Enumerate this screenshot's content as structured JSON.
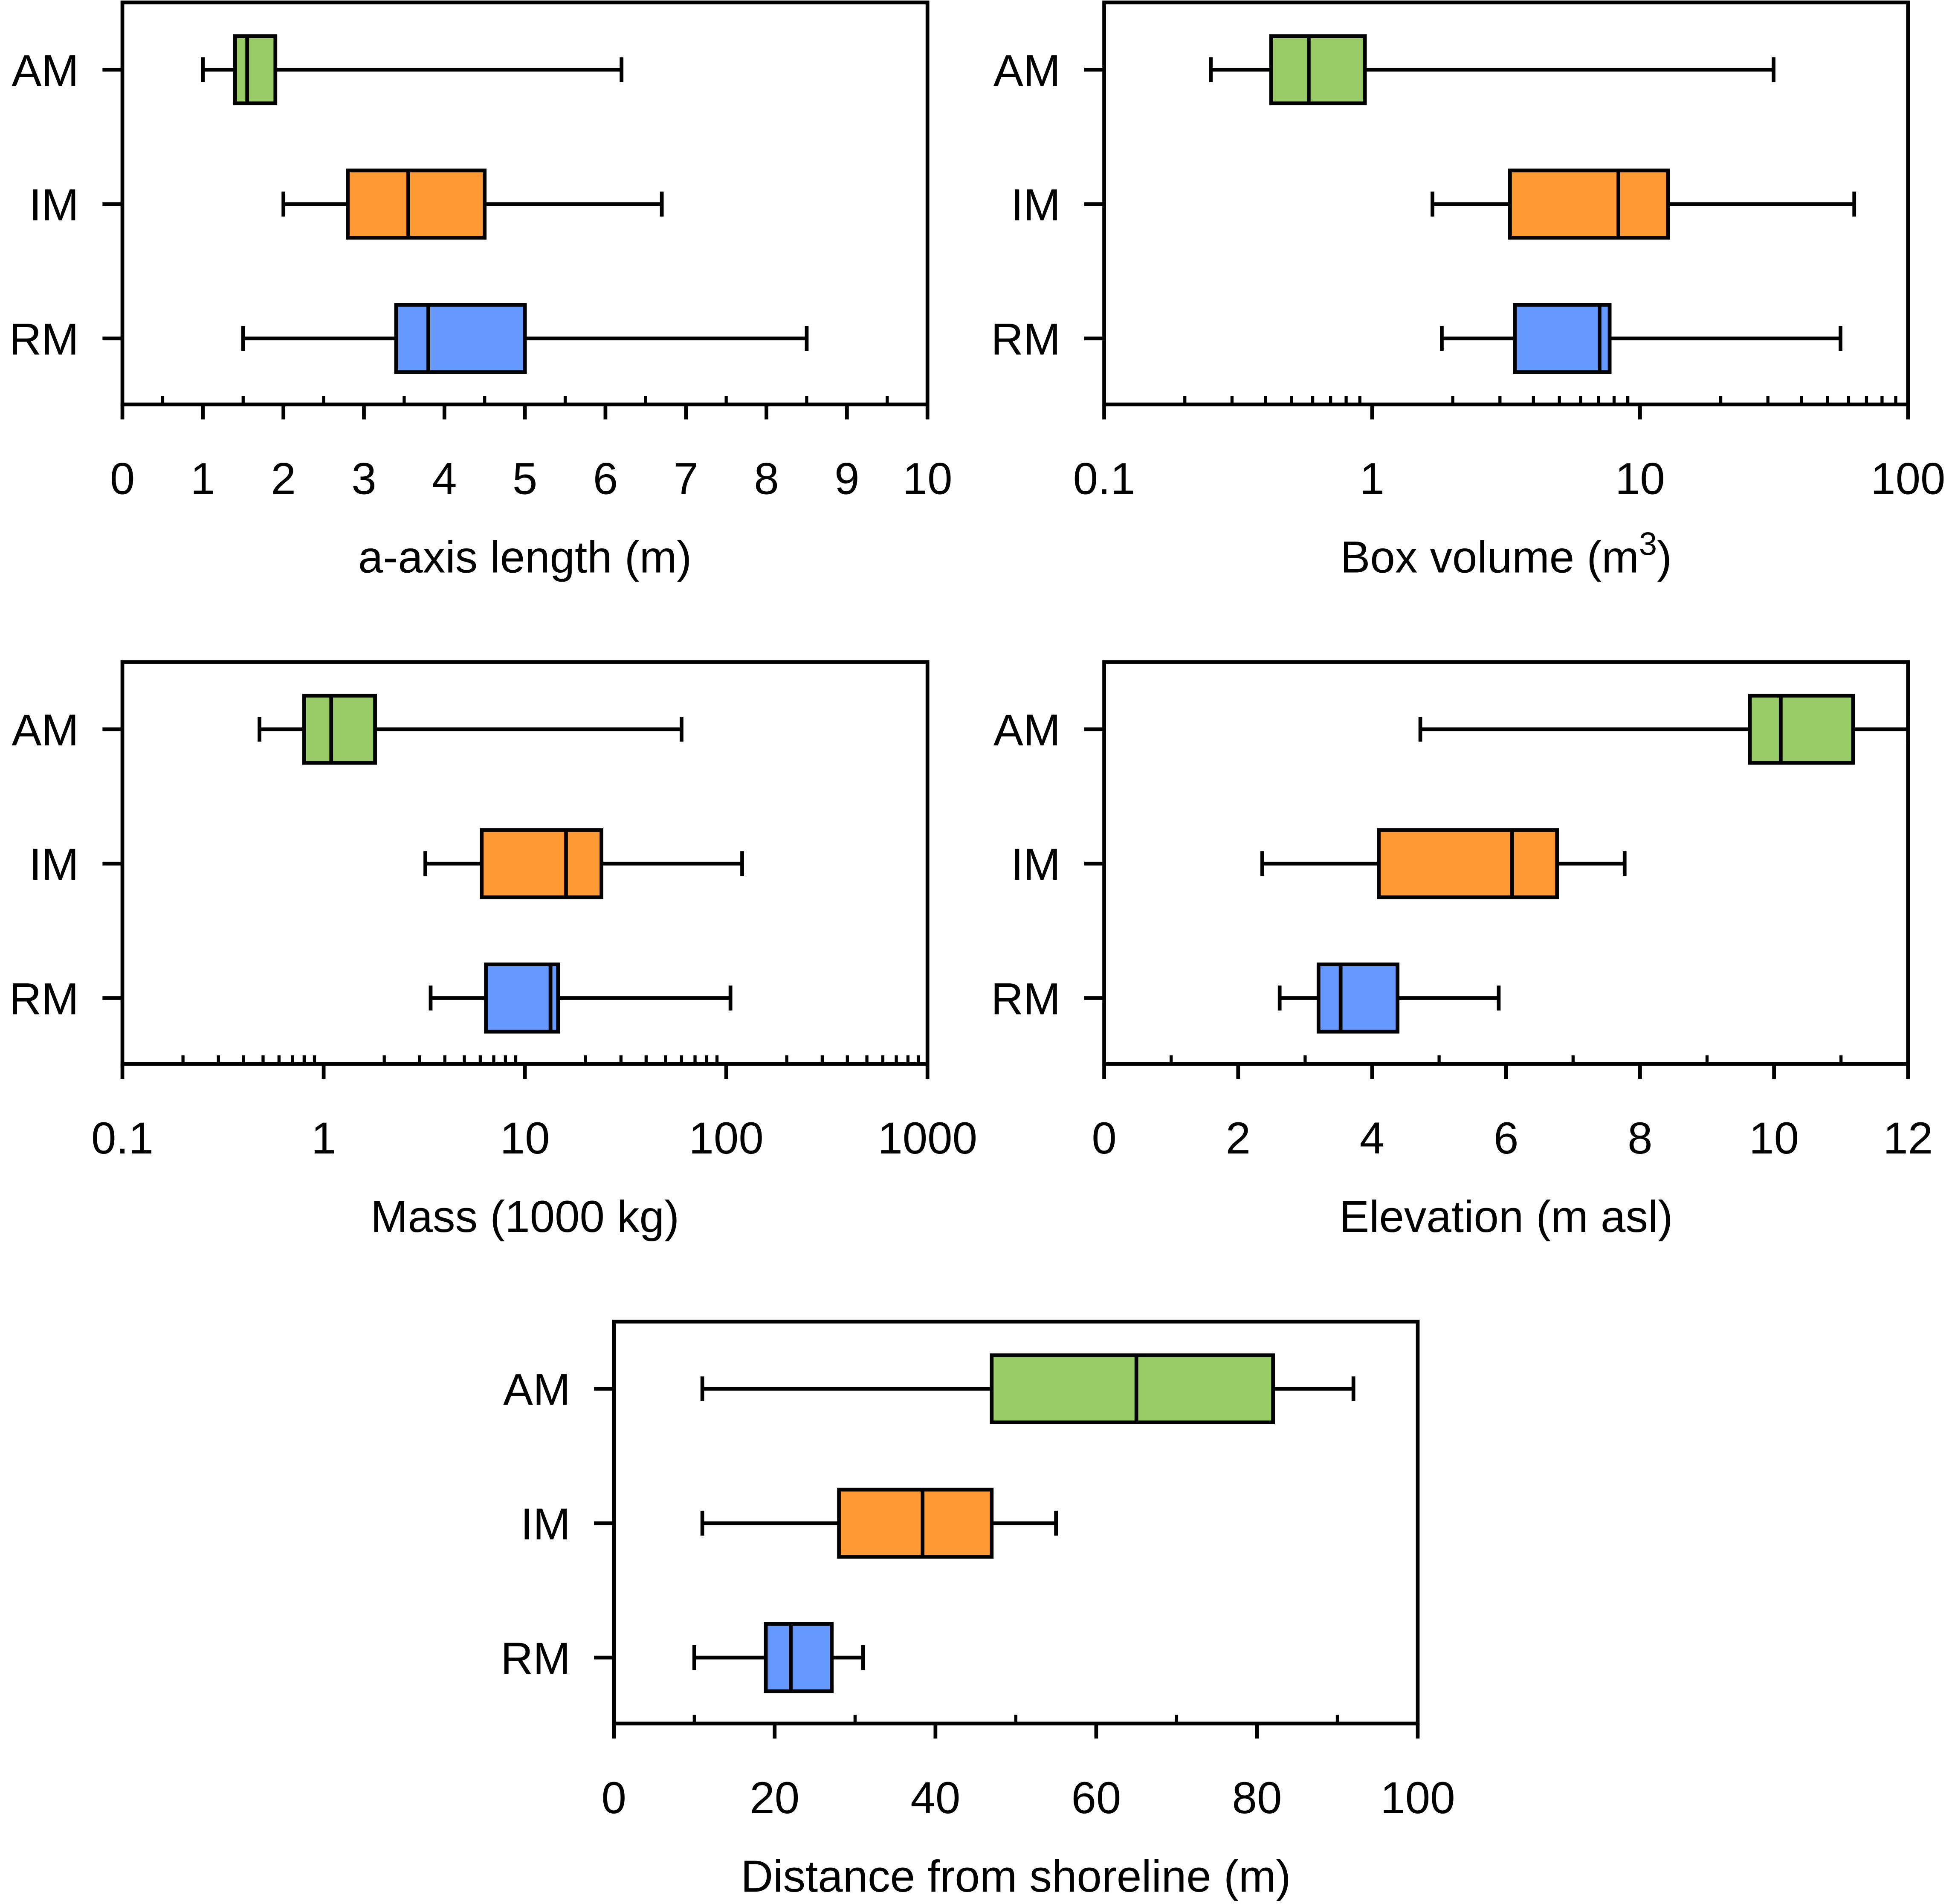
{
  "colors": {
    "AM": "#99cc66",
    "IM": "#ff9933",
    "RM": "#6699ff",
    "stroke": "#000000"
  },
  "chart_data": [
    {
      "type": "boxplot",
      "xlabel": "a-axis length (m)",
      "scale": "linear",
      "xlim": [
        0,
        10
      ],
      "ticks": [
        0,
        1,
        2,
        3,
        4,
        5,
        6,
        7,
        8,
        9,
        10
      ],
      "tick_labels": [
        "0",
        "1",
        "2",
        "3",
        "4",
        "5",
        "6",
        "7",
        "8",
        "9",
        "10"
      ],
      "minor_step": 0.5,
      "categories": [
        "AM",
        "IM",
        "RM"
      ],
      "series": [
        {
          "name": "AM",
          "min": 1.0,
          "q1": 1.4,
          "median": 1.55,
          "q3": 1.9,
          "max": 6.2
        },
        {
          "name": "IM",
          "min": 2.0,
          "q1": 2.8,
          "median": 3.55,
          "q3": 4.5,
          "max": 6.7
        },
        {
          "name": "RM",
          "min": 1.5,
          "q1": 3.4,
          "median": 3.8,
          "q3": 5.0,
          "max": 8.5
        }
      ]
    },
    {
      "type": "boxplot",
      "xlabel": "Box volume (m",
      "xlabel_sup": "3",
      "xlabel_end": ")",
      "scale": "log",
      "xlim": [
        0.1,
        100
      ],
      "ticks": [
        0.1,
        1,
        10,
        100
      ],
      "tick_labels": [
        "0.1",
        "1",
        "10",
        "100"
      ],
      "categories": [
        "AM",
        "IM",
        "RM"
      ],
      "series": [
        {
          "name": "AM",
          "min": 0.25,
          "q1": 0.42,
          "median": 0.58,
          "q3": 0.94,
          "max": 31.5
        },
        {
          "name": "IM",
          "min": 1.68,
          "q1": 3.27,
          "median": 8.3,
          "q3": 12.7,
          "max": 63
        },
        {
          "name": "RM",
          "min": 1.82,
          "q1": 3.41,
          "median": 7.06,
          "q3": 7.7,
          "max": 56
        }
      ]
    },
    {
      "type": "boxplot",
      "xlabel": "Mass (1000 kg)",
      "scale": "log",
      "xlim": [
        0.1,
        1000
      ],
      "ticks": [
        0.1,
        1,
        10,
        100,
        1000
      ],
      "tick_labels": [
        "0.1",
        "1",
        "10",
        "100",
        "1000"
      ],
      "categories": [
        "AM",
        "IM",
        "RM"
      ],
      "series": [
        {
          "name": "AM",
          "min": 0.48,
          "q1": 0.8,
          "median": 1.09,
          "q3": 1.8,
          "max": 60
        },
        {
          "name": "IM",
          "min": 3.2,
          "q1": 6.1,
          "median": 16,
          "q3": 24,
          "max": 120
        },
        {
          "name": "RM",
          "min": 3.4,
          "q1": 6.4,
          "median": 13.4,
          "q3": 14.6,
          "max": 105
        }
      ]
    },
    {
      "type": "boxplot",
      "xlabel": "Elevation (m asl)",
      "scale": "linear",
      "xlim": [
        0,
        12
      ],
      "ticks": [
        0,
        2,
        4,
        6,
        8,
        10,
        12
      ],
      "tick_labels": [
        "0",
        "2",
        "4",
        "6",
        "8",
        "10",
        "12"
      ],
      "minor_step": 1,
      "categories": [
        "AM",
        "IM",
        "RM"
      ],
      "series": [
        {
          "name": "AM",
          "min": 4.72,
          "q1": 9.64,
          "median": 10.1,
          "q3": 11.18,
          "max": 12.0
        },
        {
          "name": "IM",
          "min": 2.36,
          "q1": 4.1,
          "median": 6.09,
          "q3": 6.76,
          "max": 7.77
        },
        {
          "name": "RM",
          "min": 2.62,
          "q1": 3.2,
          "median": 3.53,
          "q3": 4.38,
          "max": 5.89
        }
      ]
    },
    {
      "type": "boxplot",
      "xlabel": "Distance from shoreline (m)",
      "scale": "linear",
      "xlim": [
        0,
        100
      ],
      "ticks": [
        0,
        20,
        40,
        60,
        80,
        100
      ],
      "tick_labels": [
        "0",
        "20",
        "40",
        "60",
        "80",
        "100"
      ],
      "minor_step": 10,
      "categories": [
        "AM",
        "IM",
        "RM"
      ],
      "series": [
        {
          "name": "AM",
          "min": 11,
          "q1": 47,
          "median": 65,
          "q3": 82,
          "max": 92
        },
        {
          "name": "IM",
          "min": 11,
          "q1": 28,
          "median": 38.4,
          "q3": 47,
          "max": 55
        },
        {
          "name": "RM",
          "min": 10,
          "q1": 18.9,
          "median": 22,
          "q3": 27.1,
          "max": 31
        }
      ]
    }
  ]
}
